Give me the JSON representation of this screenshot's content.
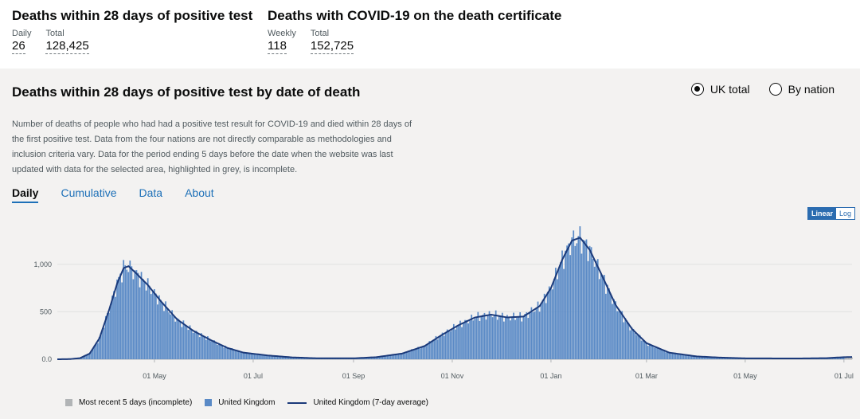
{
  "summary": {
    "left": {
      "title": "Deaths within 28 days of positive test",
      "metrics": [
        {
          "label": "Daily",
          "value": "26"
        },
        {
          "label": "Total",
          "value": "128,425"
        }
      ]
    },
    "right": {
      "title": "Deaths with COVID-19 on the death certificate",
      "metrics": [
        {
          "label": "Weekly",
          "value": "118"
        },
        {
          "label": "Total",
          "value": "152,725"
        }
      ]
    }
  },
  "panel": {
    "title": "Deaths within 28 days of positive test by date of death",
    "description": "Number of deaths of people who had had a positive test result for COVID-19 and died within 28 days of the first positive test. Data from the four nations are not directly comparable as methodologies and inclusion criteria vary. Data for the period ending 5 days before the date when the website was last updated with data for the selected area, highlighted in grey, is incomplete.",
    "radios": [
      {
        "label": "UK total",
        "checked": true
      },
      {
        "label": "By nation",
        "checked": false
      }
    ],
    "tabs": [
      {
        "label": "Daily",
        "active": true
      },
      {
        "label": "Cumulative",
        "active": false
      },
      {
        "label": "Data",
        "active": false
      },
      {
        "label": "About",
        "active": false
      }
    ],
    "scale": {
      "linear": "Linear",
      "log": "Log"
    }
  },
  "chart_data": {
    "type": "bar",
    "title": "Deaths within 28 days of positive test by date of death",
    "x_range": [
      "2020-03-02",
      "2021-07-06"
    ],
    "ylim": [
      0,
      1300
    ],
    "y_ticks": [
      {
        "value": 0,
        "label": "0.0"
      },
      {
        "value": 500,
        "label": "500"
      },
      {
        "value": 1000,
        "label": "1,000"
      }
    ],
    "x_ticks": [
      {
        "date": "2020-05-01",
        "label": "01 May"
      },
      {
        "date": "2020-07-01",
        "label": "01 Jul"
      },
      {
        "date": "2020-09-01",
        "label": "01 Sep"
      },
      {
        "date": "2020-11-01",
        "label": "01 Nov"
      },
      {
        "date": "2021-01-01",
        "label": "01 Jan"
      },
      {
        "date": "2021-03-01",
        "label": "01 Mar"
      },
      {
        "date": "2021-05-01",
        "label": "01 May"
      },
      {
        "date": "2021-07-01",
        "label": "01 Jul"
      }
    ],
    "series": [
      {
        "name": "United Kingdom (7-day average)",
        "kind": "line",
        "points": [
          [
            "2020-03-02",
            0
          ],
          [
            "2020-03-10",
            2
          ],
          [
            "2020-03-16",
            12
          ],
          [
            "2020-03-22",
            60
          ],
          [
            "2020-03-28",
            220
          ],
          [
            "2020-04-03",
            520
          ],
          [
            "2020-04-08",
            800
          ],
          [
            "2020-04-12",
            960
          ],
          [
            "2020-04-15",
            980
          ],
          [
            "2020-04-20",
            900
          ],
          [
            "2020-04-27",
            780
          ],
          [
            "2020-05-05",
            610
          ],
          [
            "2020-05-15",
            420
          ],
          [
            "2020-05-25",
            300
          ],
          [
            "2020-06-05",
            200
          ],
          [
            "2020-06-15",
            120
          ],
          [
            "2020-06-25",
            70
          ],
          [
            "2020-07-10",
            40
          ],
          [
            "2020-07-25",
            20
          ],
          [
            "2020-08-10",
            10
          ],
          [
            "2020-09-01",
            10
          ],
          [
            "2020-09-15",
            22
          ],
          [
            "2020-10-01",
            60
          ],
          [
            "2020-10-15",
            140
          ],
          [
            "2020-10-25",
            250
          ],
          [
            "2020-11-05",
            360
          ],
          [
            "2020-11-15",
            440
          ],
          [
            "2020-11-25",
            470
          ],
          [
            "2020-12-05",
            440
          ],
          [
            "2020-12-15",
            450
          ],
          [
            "2020-12-25",
            560
          ],
          [
            "2021-01-01",
            750
          ],
          [
            "2021-01-08",
            1050
          ],
          [
            "2021-01-14",
            1250
          ],
          [
            "2021-01-19",
            1280
          ],
          [
            "2021-01-25",
            1150
          ],
          [
            "2021-02-01",
            900
          ],
          [
            "2021-02-10",
            570
          ],
          [
            "2021-02-20",
            320
          ],
          [
            "2021-03-01",
            170
          ],
          [
            "2021-03-15",
            70
          ],
          [
            "2021-04-01",
            30
          ],
          [
            "2021-04-15",
            18
          ],
          [
            "2021-05-01",
            10
          ],
          [
            "2021-06-01",
            8
          ],
          [
            "2021-06-20",
            12
          ],
          [
            "2021-07-01",
            22
          ],
          [
            "2021-07-06",
            24
          ]
        ]
      },
      {
        "name": "United Kingdom",
        "kind": "bar",
        "note": "daily deaths, blue bars"
      },
      {
        "name": "Most recent 5 days (incomplete)",
        "kind": "bar",
        "note": "grey bars"
      }
    ],
    "legend": [
      {
        "label": "Most recent 5 days (incomplete)",
        "color": "#b1b4b6"
      },
      {
        "label": "United Kingdom",
        "color": "#5a8ac6"
      },
      {
        "label": "United Kingdom (7-day average)",
        "color": "#1b3a7a"
      }
    ]
  }
}
